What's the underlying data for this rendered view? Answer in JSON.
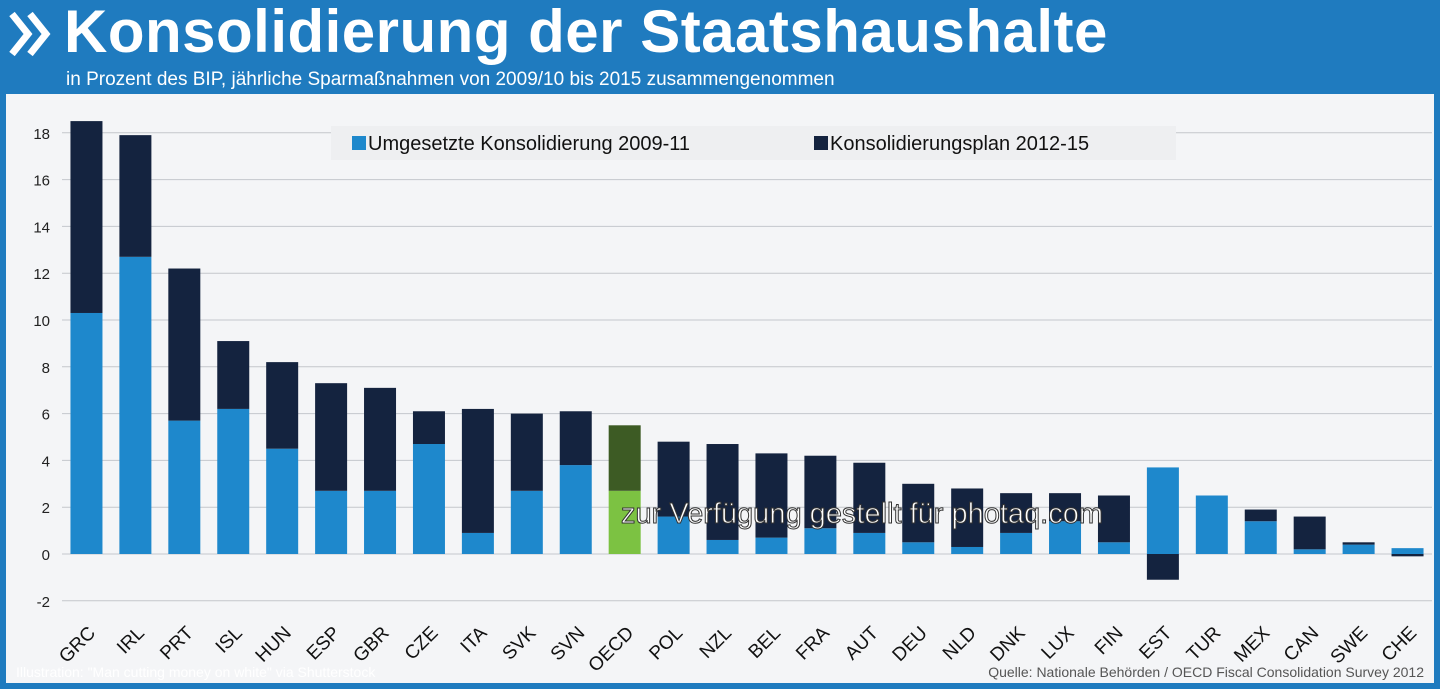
{
  "header": {
    "title": "Konsolidierung der Staatshaushalte",
    "subtitle": "in Prozent des BIP, jährliche Sparmaßnahmen von 2009/10 bis 2015 zusammengenommen",
    "logo": "oecd-chevron-logo"
  },
  "footer": {
    "illustration": "Illustration: \"Man cutting money on white\" via Shutterstock",
    "source": "Quelle:  Nationale Behörden / OECD Fiscal Consolidation Survey 2012"
  },
  "watermark": "zur Verfügung gestellt für photaq.com",
  "colors": {
    "frame": "#1f7bbf",
    "implemented": "#1e88cc",
    "planned": "#14233f",
    "oecd_implemented": "#7cc242",
    "oecd_planned": "#3d5b24"
  },
  "chart_data": {
    "type": "bar",
    "stacked": true,
    "categories": [
      "GRC",
      "IRL",
      "PRT",
      "ISL",
      "HUN",
      "ESP",
      "GBR",
      "CZE",
      "ITA",
      "SVK",
      "SVN",
      "OECD",
      "POL",
      "NZL",
      "BEL",
      "FRA",
      "AUT",
      "DEU",
      "NLD",
      "DNK",
      "LUX",
      "FIN",
      "EST",
      "TUR",
      "MEX",
      "CAN",
      "SWE",
      "CHE"
    ],
    "series": [
      {
        "name": "Umgesetzte Konsolidierung 2009-11",
        "values": [
          10.3,
          12.7,
          5.7,
          6.2,
          4.5,
          2.7,
          2.7,
          4.7,
          0.9,
          2.7,
          3.8,
          2.7,
          1.6,
          0.6,
          0.7,
          1.1,
          0.9,
          0.5,
          0.3,
          0.9,
          1.4,
          0.5,
          3.7,
          2.5,
          1.4,
          0.2,
          0.4,
          0.25
        ]
      },
      {
        "name": "Konsolidierungsplan 2012-15",
        "values": [
          8.2,
          5.2,
          6.5,
          2.9,
          3.7,
          4.6,
          4.4,
          1.4,
          5.3,
          3.3,
          2.3,
          2.8,
          3.2,
          4.1,
          3.6,
          3.1,
          3.0,
          2.5,
          2.5,
          1.7,
          1.2,
          2.0,
          -1.1,
          0.0,
          0.5,
          1.4,
          0.1,
          -0.1
        ]
      }
    ],
    "highlight": "OECD",
    "yticks": [
      -2,
      0,
      2,
      4,
      6,
      8,
      10,
      12,
      14,
      16,
      18
    ],
    "ylim": [
      -2,
      19
    ],
    "grid": true,
    "legend": "top-center"
  }
}
